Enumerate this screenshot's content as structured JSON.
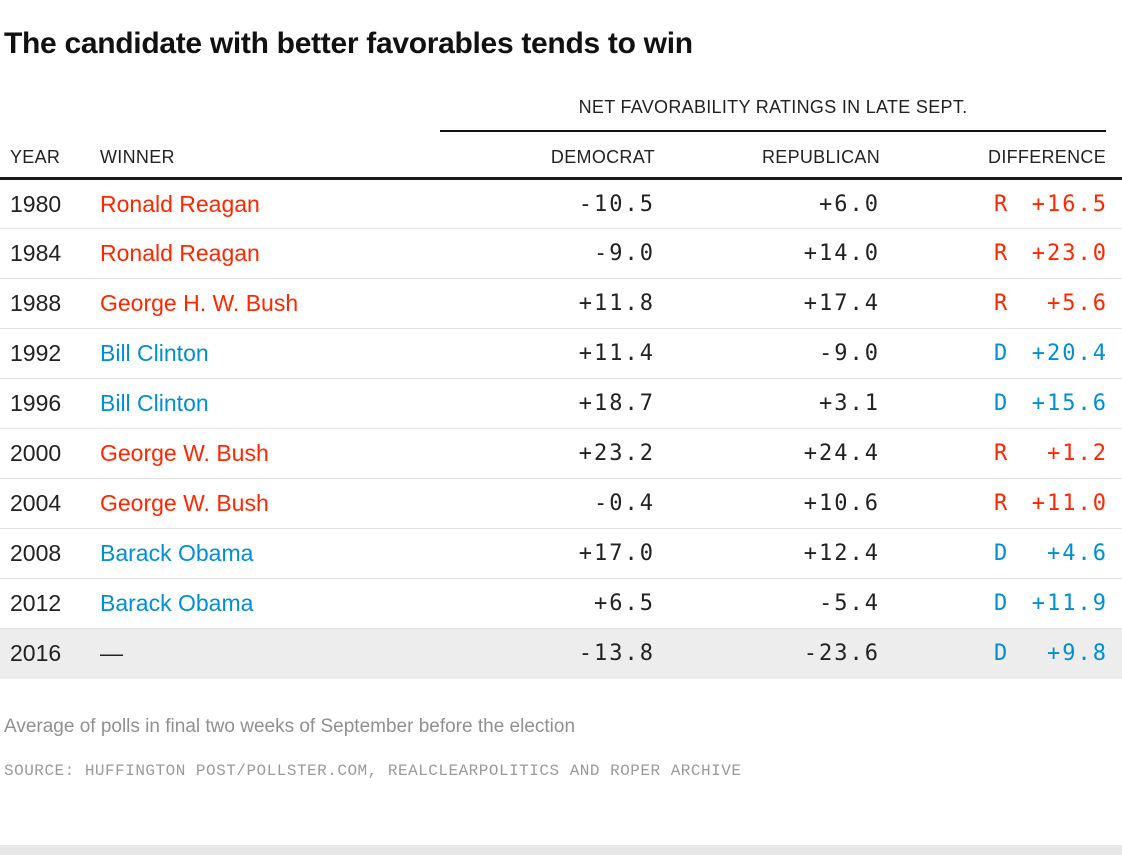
{
  "title": "The candidate with better favorables tends to win",
  "footnote": "Average of polls in final two weeks of September before the election",
  "source": "SOURCE: HUFFINGTON POST/POLLSTER.COM, REALCLEARPOLITICS AND ROPER ARCHIVE",
  "colors": {
    "republican": "#ff2700",
    "democrat": "#008fd5",
    "highlight_row_bg": "#ededed"
  },
  "chart_data": {
    "type": "table",
    "title": "The candidate with better favorables tends to win",
    "group_header": "NET FAVORABILITY RATINGS IN LATE SEPT.",
    "columns": [
      "YEAR",
      "WINNER",
      "DEMOCRAT",
      "REPUBLICAN",
      "DIFFERENCE"
    ],
    "rows": [
      {
        "year": "1980",
        "winner": "Ronald Reagan",
        "party": "R",
        "democrat": "-10.5",
        "republican": "+6.0",
        "difference_party": "R",
        "difference_value": "+16.5",
        "highlight": false
      },
      {
        "year": "1984",
        "winner": "Ronald Reagan",
        "party": "R",
        "democrat": "-9.0",
        "republican": "+14.0",
        "difference_party": "R",
        "difference_value": "+23.0",
        "highlight": false
      },
      {
        "year": "1988",
        "winner": "George H. W. Bush",
        "party": "R",
        "democrat": "+11.8",
        "republican": "+17.4",
        "difference_party": "R",
        "difference_value": "+5.6",
        "highlight": false
      },
      {
        "year": "1992",
        "winner": "Bill Clinton",
        "party": "D",
        "democrat": "+11.4",
        "republican": "-9.0",
        "difference_party": "D",
        "difference_value": "+20.4",
        "highlight": false
      },
      {
        "year": "1996",
        "winner": "Bill Clinton",
        "party": "D",
        "democrat": "+18.7",
        "republican": "+3.1",
        "difference_party": "D",
        "difference_value": "+15.6",
        "highlight": false
      },
      {
        "year": "2000",
        "winner": "George W. Bush",
        "party": "R",
        "democrat": "+23.2",
        "republican": "+24.4",
        "difference_party": "R",
        "difference_value": "+1.2",
        "highlight": false
      },
      {
        "year": "2004",
        "winner": "George W. Bush",
        "party": "R",
        "democrat": "-0.4",
        "republican": "+10.6",
        "difference_party": "R",
        "difference_value": "+11.0",
        "highlight": false
      },
      {
        "year": "2008",
        "winner": "Barack Obama",
        "party": "D",
        "democrat": "+17.0",
        "republican": "+12.4",
        "difference_party": "D",
        "difference_value": "+4.6",
        "highlight": false
      },
      {
        "year": "2012",
        "winner": "Barack Obama",
        "party": "D",
        "democrat": "+6.5",
        "republican": "-5.4",
        "difference_party": "D",
        "difference_value": "+11.9",
        "highlight": false
      },
      {
        "year": "2016",
        "winner": "—",
        "party": "none",
        "democrat": "-13.8",
        "republican": "-23.6",
        "difference_party": "D",
        "difference_value": "+9.8",
        "highlight": true
      }
    ]
  }
}
